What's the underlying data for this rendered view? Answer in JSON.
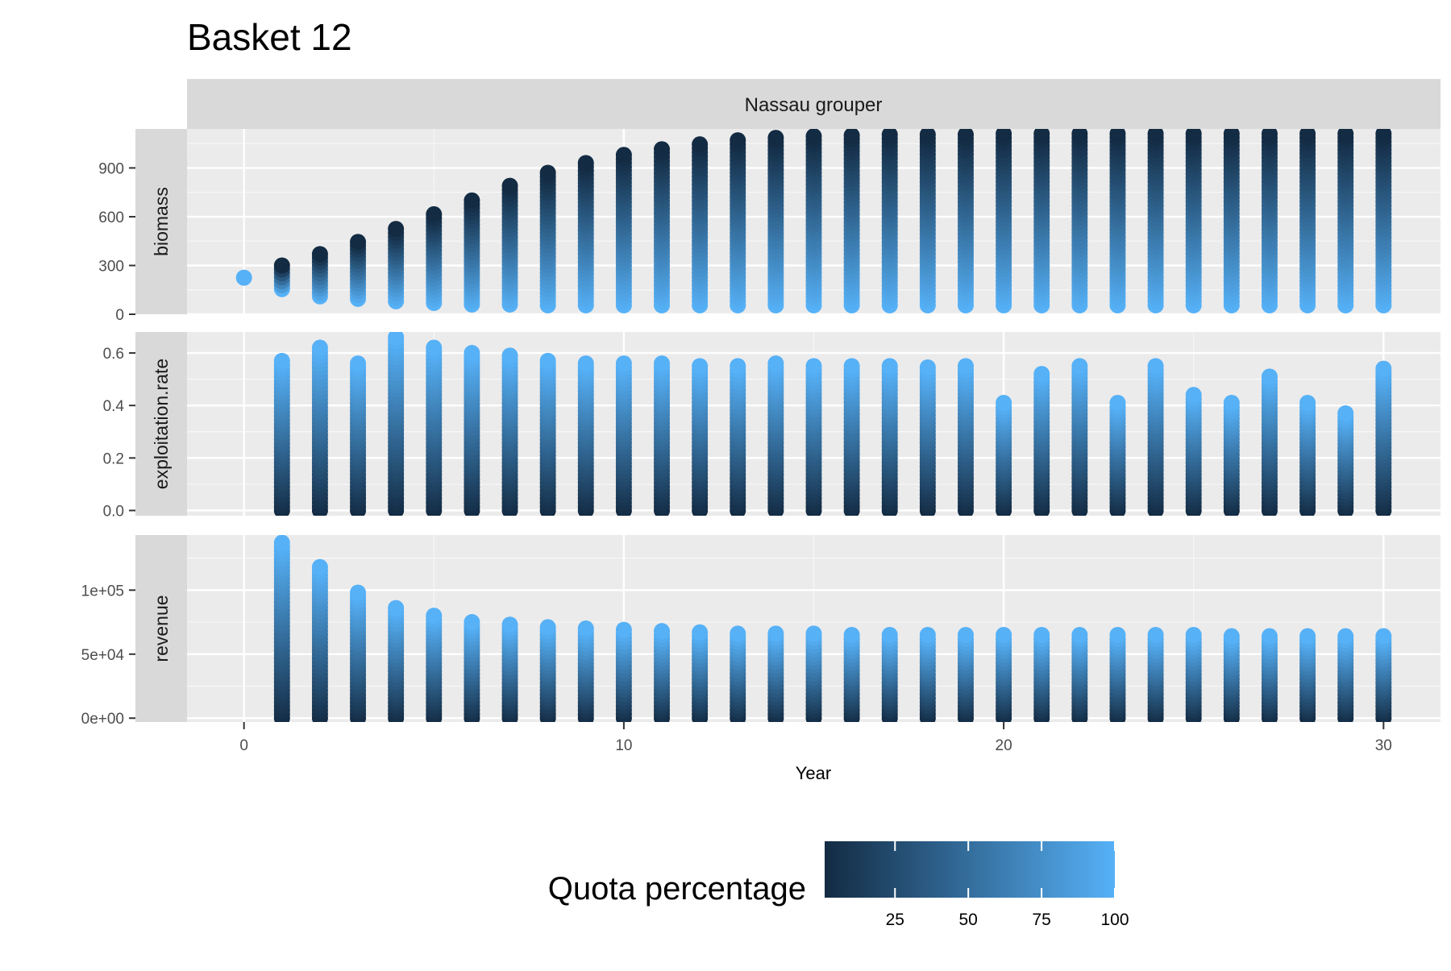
{
  "chart_data": {
    "type": "scatter",
    "title": "Basket 12",
    "facet_label": "Nassau grouper",
    "xlabel": "Year",
    "xlim": [
      0,
      30
    ],
    "x_ticks": [
      0,
      10,
      20,
      30
    ],
    "x_tick_labels": [
      "0",
      "10",
      "20",
      "30"
    ],
    "grid": true,
    "legend": {
      "title": "Quota percentage",
      "position": "bottom",
      "range": [
        1,
        100
      ],
      "ticks": [
        25,
        50,
        75,
        100
      ],
      "tick_labels": [
        "25",
        "50",
        "75",
        "100"
      ],
      "color_low": "#132B43",
      "color_high": "#56B1F7"
    },
    "panels": [
      {
        "strip": "biomass",
        "ylim": [
          0,
          1140
        ],
        "y_ticks": [
          0,
          300,
          600,
          900
        ],
        "y_tick_labels": [
          "0",
          "300",
          "600",
          "900"
        ],
        "series": [
          {
            "x": 0,
            "min": 225,
            "max": 225
          },
          {
            "x": 1,
            "min": 155,
            "max": 300
          },
          {
            "x": 2,
            "min": 110,
            "max": 370
          },
          {
            "x": 3,
            "min": 95,
            "max": 445
          },
          {
            "x": 4,
            "min": 80,
            "max": 525
          },
          {
            "x": 5,
            "min": 70,
            "max": 615
          },
          {
            "x": 6,
            "min": 60,
            "max": 700
          },
          {
            "x": 7,
            "min": 60,
            "max": 790
          },
          {
            "x": 8,
            "min": 55,
            "max": 870
          },
          {
            "x": 9,
            "min": 55,
            "max": 930
          },
          {
            "x": 10,
            "min": 55,
            "max": 980
          },
          {
            "x": 11,
            "min": 55,
            "max": 1015
          },
          {
            "x": 12,
            "min": 55,
            "max": 1045
          },
          {
            "x": 13,
            "min": 55,
            "max": 1070
          },
          {
            "x": 14,
            "min": 55,
            "max": 1085
          },
          {
            "x": 15,
            "min": 55,
            "max": 1095
          },
          {
            "x": 16,
            "min": 55,
            "max": 1100
          },
          {
            "x": 17,
            "min": 55,
            "max": 1105
          },
          {
            "x": 18,
            "min": 55,
            "max": 1105
          },
          {
            "x": 19,
            "min": 55,
            "max": 1105
          },
          {
            "x": 20,
            "min": 55,
            "max": 1110
          },
          {
            "x": 21,
            "min": 55,
            "max": 1110
          },
          {
            "x": 22,
            "min": 55,
            "max": 1110
          },
          {
            "x": 23,
            "min": 55,
            "max": 1110
          },
          {
            "x": 24,
            "min": 55,
            "max": 1110
          },
          {
            "x": 25,
            "min": 55,
            "max": 1110
          },
          {
            "x": 26,
            "min": 55,
            "max": 1110
          },
          {
            "x": 27,
            "min": 55,
            "max": 1110
          },
          {
            "x": 28,
            "min": 55,
            "max": 1110
          },
          {
            "x": 29,
            "min": 55,
            "max": 1110
          },
          {
            "x": 30,
            "min": 55,
            "max": 1110
          }
        ]
      },
      {
        "strip": "exploitation.rate",
        "ylim": [
          -0.02,
          0.68
        ],
        "y_ticks": [
          0,
          0.2,
          0.4,
          0.6
        ],
        "y_tick_labels": [
          "0.0",
          "0.2",
          "0.4",
          "0.6"
        ],
        "series": [
          {
            "x": 1,
            "min": 0,
            "max": 0.57
          },
          {
            "x": 2,
            "min": 0,
            "max": 0.62
          },
          {
            "x": 3,
            "min": 0,
            "max": 0.56
          },
          {
            "x": 4,
            "min": 0,
            "max": 0.66
          },
          {
            "x": 5,
            "min": 0,
            "max": 0.62
          },
          {
            "x": 6,
            "min": 0,
            "max": 0.6
          },
          {
            "x": 7,
            "min": 0,
            "max": 0.59
          },
          {
            "x": 8,
            "min": 0,
            "max": 0.57
          },
          {
            "x": 9,
            "min": 0,
            "max": 0.56
          },
          {
            "x": 10,
            "min": 0,
            "max": 0.56
          },
          {
            "x": 11,
            "min": 0,
            "max": 0.56
          },
          {
            "x": 12,
            "min": 0,
            "max": 0.55
          },
          {
            "x": 13,
            "min": 0,
            "max": 0.55
          },
          {
            "x": 14,
            "min": 0,
            "max": 0.56
          },
          {
            "x": 15,
            "min": 0,
            "max": 0.55
          },
          {
            "x": 16,
            "min": 0,
            "max": 0.55
          },
          {
            "x": 17,
            "min": 0,
            "max": 0.55
          },
          {
            "x": 18,
            "min": 0,
            "max": 0.545
          },
          {
            "x": 19,
            "min": 0,
            "max": 0.55
          },
          {
            "x": 20,
            "min": 0,
            "max": 0.41
          },
          {
            "x": 21,
            "min": 0,
            "max": 0.52
          },
          {
            "x": 22,
            "min": 0,
            "max": 0.55
          },
          {
            "x": 23,
            "min": 0,
            "max": 0.41
          },
          {
            "x": 24,
            "min": 0,
            "max": 0.55
          },
          {
            "x": 25,
            "min": 0,
            "max": 0.44
          },
          {
            "x": 26,
            "min": 0,
            "max": 0.41
          },
          {
            "x": 27,
            "min": 0,
            "max": 0.51
          },
          {
            "x": 28,
            "min": 0,
            "max": 0.41
          },
          {
            "x": 29,
            "min": 0,
            "max": 0.37
          },
          {
            "x": 30,
            "min": 0,
            "max": 0.54
          }
        ]
      },
      {
        "strip": "revenue",
        "ylim": [
          -3000,
          143000
        ],
        "y_ticks": [
          0,
          50000,
          100000
        ],
        "y_tick_labels": [
          "0e+00",
          "5e+04",
          "1e+05"
        ],
        "series": [
          {
            "x": 1,
            "min": 0,
            "max": 137000
          },
          {
            "x": 2,
            "min": 0,
            "max": 118000
          },
          {
            "x": 3,
            "min": 0,
            "max": 98000
          },
          {
            "x": 4,
            "min": 0,
            "max": 86000
          },
          {
            "x": 5,
            "min": 0,
            "max": 80000
          },
          {
            "x": 6,
            "min": 0,
            "max": 75000
          },
          {
            "x": 7,
            "min": 0,
            "max": 73000
          },
          {
            "x": 8,
            "min": 0,
            "max": 71000
          },
          {
            "x": 9,
            "min": 0,
            "max": 70000
          },
          {
            "x": 10,
            "min": 0,
            "max": 69000
          },
          {
            "x": 11,
            "min": 0,
            "max": 68000
          },
          {
            "x": 12,
            "min": 0,
            "max": 67000
          },
          {
            "x": 13,
            "min": 0,
            "max": 66000
          },
          {
            "x": 14,
            "min": 0,
            "max": 66000
          },
          {
            "x": 15,
            "min": 0,
            "max": 66000
          },
          {
            "x": 16,
            "min": 0,
            "max": 65000
          },
          {
            "x": 17,
            "min": 0,
            "max": 65000
          },
          {
            "x": 18,
            "min": 0,
            "max": 65000
          },
          {
            "x": 19,
            "min": 0,
            "max": 65000
          },
          {
            "x": 20,
            "min": 0,
            "max": 65000
          },
          {
            "x": 21,
            "min": 0,
            "max": 65000
          },
          {
            "x": 22,
            "min": 0,
            "max": 65000
          },
          {
            "x": 23,
            "min": 0,
            "max": 65000
          },
          {
            "x": 24,
            "min": 0,
            "max": 65000
          },
          {
            "x": 25,
            "min": 0,
            "max": 65000
          },
          {
            "x": 26,
            "min": 0,
            "max": 64000
          },
          {
            "x": 27,
            "min": 0,
            "max": 64000
          },
          {
            "x": 28,
            "min": 0,
            "max": 64000
          },
          {
            "x": 29,
            "min": 0,
            "max": 64000
          },
          {
            "x": 30,
            "min": 0,
            "max": 64000
          }
        ]
      }
    ]
  }
}
